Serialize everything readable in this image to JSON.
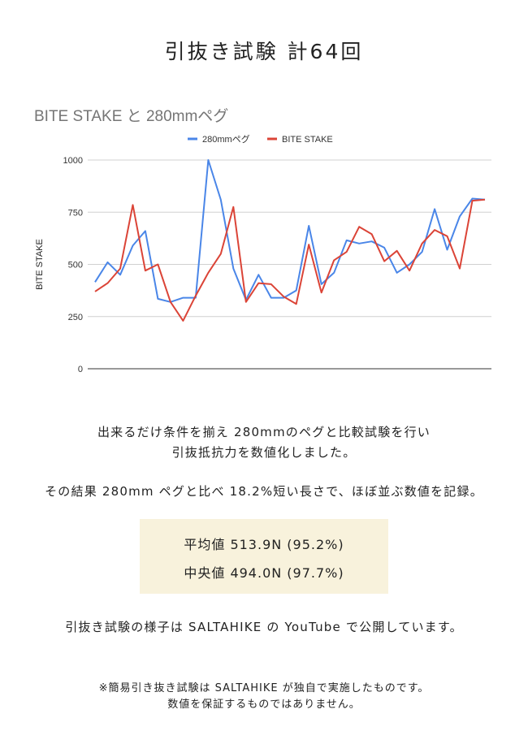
{
  "page_title": "引抜き試験 計64回",
  "chart_data": {
    "type": "line",
    "title": "BITE STAKE と 280mmペグ",
    "xlabel": "",
    "ylabel": "BITE STAKE",
    "ylim": [
      0,
      1000
    ],
    "yticks": [
      "1000",
      "750",
      "500",
      "250",
      "0"
    ],
    "legend_position": "top",
    "grid": true,
    "series": [
      {
        "name": "280mmペグ",
        "color": "#4a86e8",
        "values": [
          415,
          510,
          450,
          590,
          660,
          335,
          320,
          340,
          340,
          1000,
          810,
          480,
          330,
          450,
          340,
          340,
          375,
          685,
          405,
          460,
          615,
          600,
          610,
          580,
          460,
          500,
          560,
          765,
          570,
          730,
          815,
          810
        ]
      },
      {
        "name": "BITE STAKE",
        "color": "#db4437",
        "values": [
          370,
          410,
          480,
          785,
          470,
          500,
          320,
          230,
          350,
          460,
          550,
          775,
          320,
          410,
          405,
          345,
          310,
          595,
          365,
          520,
          560,
          680,
          645,
          515,
          565,
          470,
          600,
          665,
          635,
          480,
          805,
          810
        ]
      }
    ]
  },
  "description": {
    "line1": "出来るだけ条件を揃え 280mmのペグと比較試験を行い",
    "line2": "引抜抵抗力を数値化しました。",
    "line3": "その結果 280mm ペグと比べ 18.2%短い長さで、ほぼ並ぶ数値を記録。"
  },
  "summary": {
    "average": "平均値 513.9N (95.2%)",
    "median": "中央値 494.0N (97.7%)",
    "background_color": "#f8f2dc"
  },
  "youtube_note": "引抜き試験の様子は SALTAHIKE の YouTube で公開しています。",
  "footnote": {
    "line1": "※簡易引き抜き試験は SALTAHIKE が独自で実施したものです。",
    "line2": "数値を保証するものではありません。"
  }
}
